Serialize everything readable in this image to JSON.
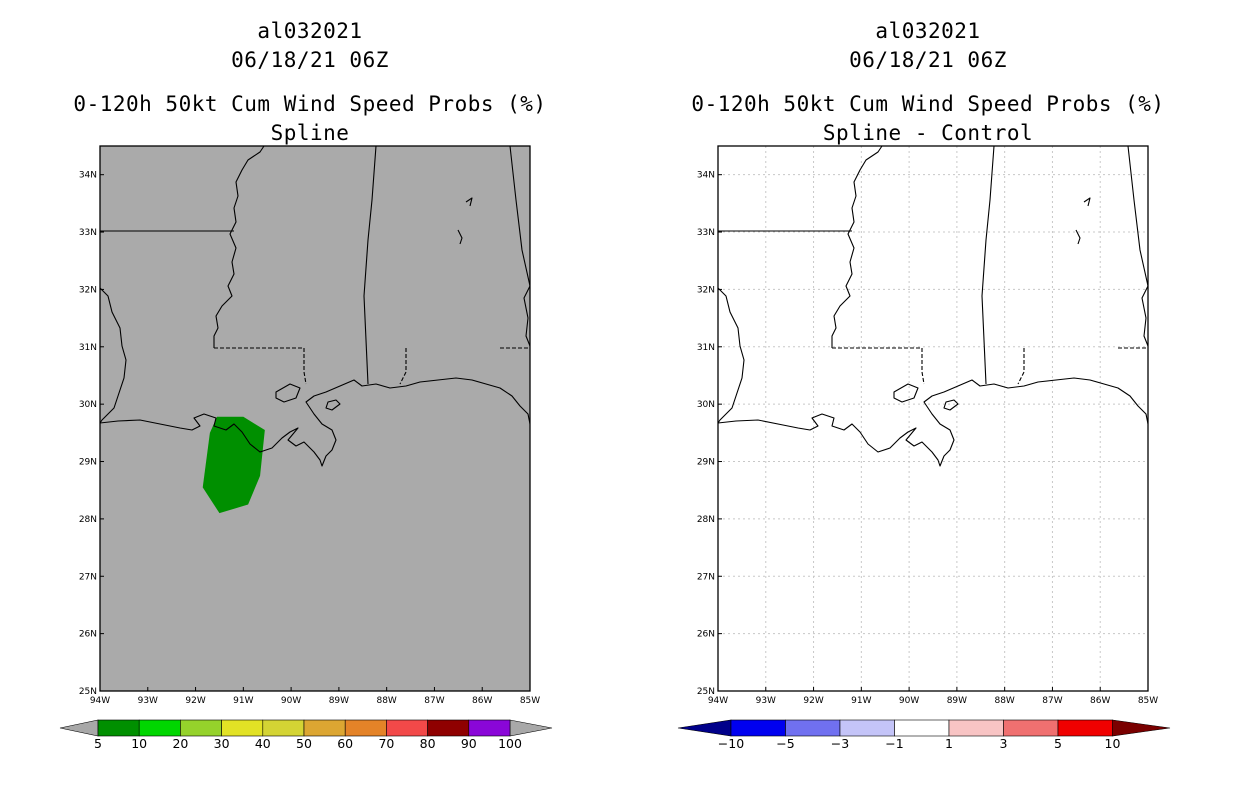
{
  "left_panel": {
    "storm_id": "al032021",
    "datetime": "06/18/21 06Z",
    "product": "0-120h 50kt Cum Wind Speed Probs (%)",
    "method": "Spline",
    "colorbar": {
      "colors": [
        "#008f00",
        "#00d600",
        "#95d22b",
        "#e2e225",
        "#d4d434",
        "#dca632",
        "#e48328",
        "#f24949",
        "#8f0000",
        "#8a06d8"
      ],
      "end_color": "#a8a8a8",
      "labels": [
        "5",
        "10",
        "20",
        "30",
        "40",
        "50",
        "60",
        "70",
        "80",
        "90",
        "100"
      ]
    },
    "colors": {
      "background": "#aaaaaa",
      "probability_area": "#008f00"
    }
  },
  "right_panel": {
    "storm_id": "al032021",
    "datetime": "06/18/21 06Z",
    "product": "0-120h 50kt Cum Wind Speed Probs (%)",
    "method": "Spline - Control",
    "colorbar": {
      "colors": [
        "#0000f0",
        "#7070f0",
        "#c4c4f8",
        "#ffffff",
        "#f8c4c4",
        "#f07070",
        "#f00000"
      ],
      "low_end_color": "#00008a",
      "high_end_color": "#7a0000",
      "labels": [
        "−10",
        "−5",
        "−3",
        "−1",
        "1",
        "3",
        "5",
        "10"
      ]
    },
    "colors": {
      "background": "#ffffff"
    }
  },
  "map_axes": {
    "lon_labels": [
      "94W",
      "93W",
      "92W",
      "91W",
      "90W",
      "89W",
      "88W",
      "87W",
      "86W",
      "85W"
    ],
    "lat_labels": [
      "25N",
      "26N",
      "27N",
      "28N",
      "29N",
      "30N",
      "31N",
      "32N",
      "33N",
      "34N"
    ],
    "lon_range": [
      -94,
      -85
    ],
    "lat_range": [
      25,
      34.5
    ]
  },
  "probability_area": {
    "threshold_label": "5",
    "polygon_lonlat": [
      [
        -91.55,
        29.78
      ],
      [
        -91.0,
        29.78
      ],
      [
        -90.55,
        29.55
      ],
      [
        -90.65,
        28.75
      ],
      [
        -90.9,
        28.25
      ],
      [
        -91.5,
        28.1
      ],
      [
        -91.85,
        28.55
      ],
      [
        -91.7,
        29.5
      ]
    ]
  }
}
